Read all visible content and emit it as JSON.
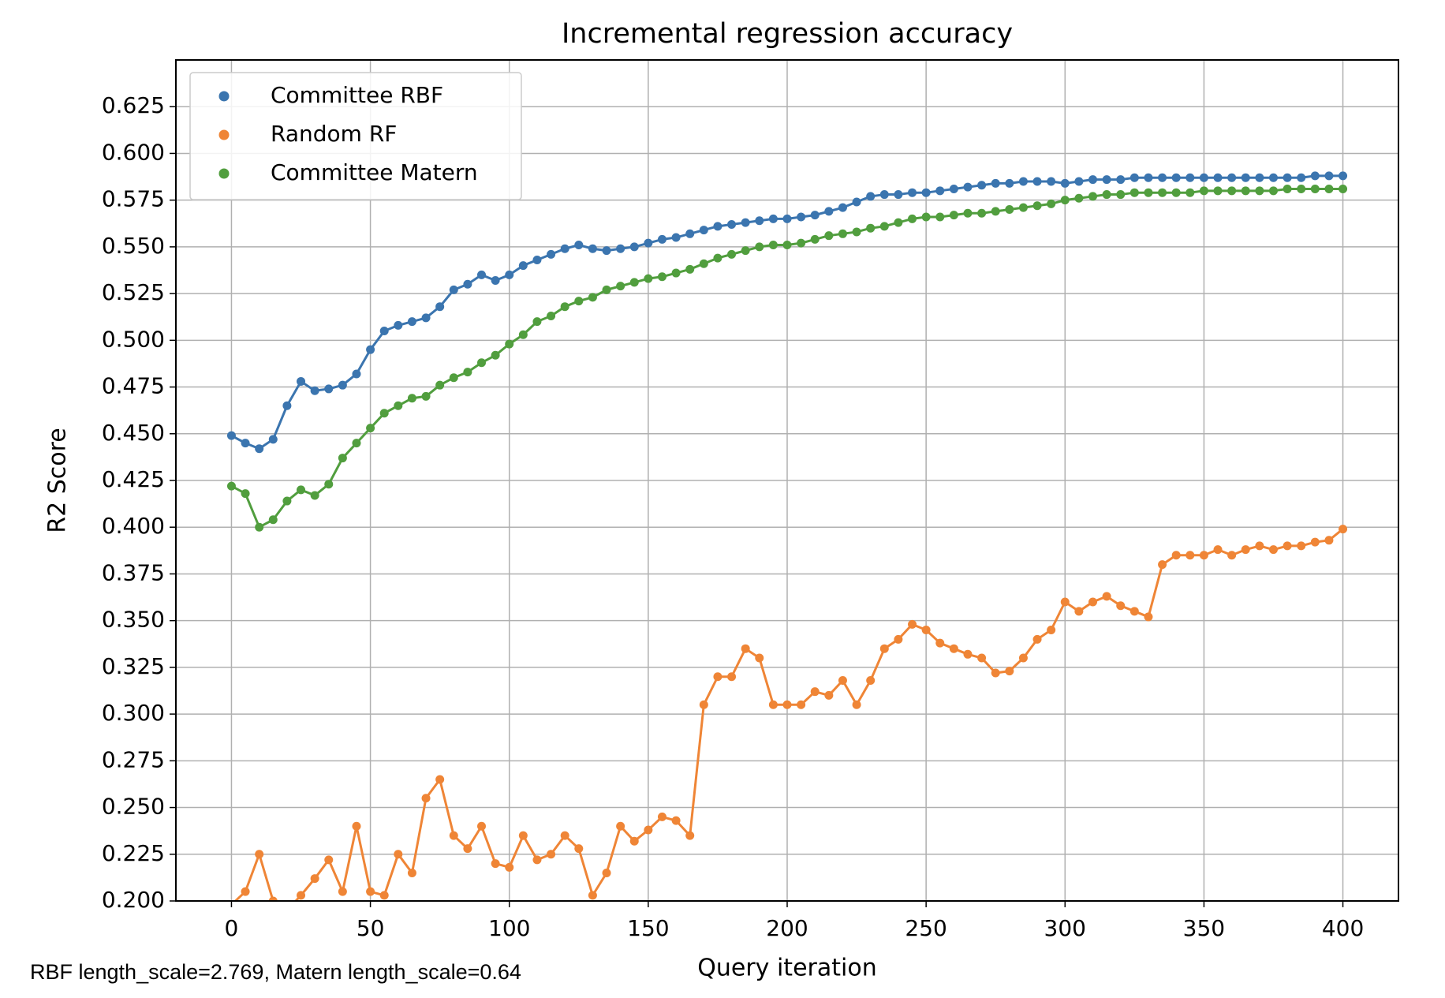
{
  "chart_data": {
    "type": "line",
    "title": "Incremental regression accuracy",
    "xlabel": "Query iteration",
    "ylabel": "R2 Score",
    "annotation": "RBF length_scale=2.769, Matern length_scale=0.64",
    "x": [
      0,
      5,
      10,
      15,
      20,
      25,
      30,
      35,
      40,
      45,
      50,
      55,
      60,
      65,
      70,
      75,
      80,
      85,
      90,
      95,
      100,
      105,
      110,
      115,
      120,
      125,
      130,
      135,
      140,
      145,
      150,
      155,
      160,
      165,
      170,
      175,
      180,
      185,
      190,
      195,
      200,
      205,
      210,
      215,
      220,
      225,
      230,
      235,
      240,
      245,
      250,
      255,
      260,
      265,
      270,
      275,
      280,
      285,
      290,
      295,
      300,
      305,
      310,
      315,
      320,
      325,
      330,
      335,
      340,
      345,
      350,
      355,
      360,
      365,
      370,
      375,
      380,
      385,
      390,
      395,
      400
    ],
    "series": [
      {
        "name": "Committee RBF",
        "color": "#3b75af",
        "values": [
          0.449,
          0.445,
          0.442,
          0.447,
          0.465,
          0.478,
          0.473,
          0.474,
          0.476,
          0.482,
          0.495,
          0.505,
          0.508,
          0.51,
          0.512,
          0.518,
          0.527,
          0.53,
          0.535,
          0.532,
          0.535,
          0.54,
          0.543,
          0.546,
          0.549,
          0.551,
          0.549,
          0.548,
          0.549,
          0.55,
          0.552,
          0.554,
          0.555,
          0.557,
          0.559,
          0.561,
          0.562,
          0.563,
          0.564,
          0.565,
          0.565,
          0.566,
          0.567,
          0.569,
          0.571,
          0.574,
          0.577,
          0.578,
          0.578,
          0.579,
          0.579,
          0.58,
          0.581,
          0.582,
          0.583,
          0.584,
          0.584,
          0.585,
          0.585,
          0.585,
          0.584,
          0.585,
          0.586,
          0.586,
          0.586,
          0.587,
          0.587,
          0.587,
          0.587,
          0.587,
          0.587,
          0.587,
          0.587,
          0.587,
          0.587,
          0.587,
          0.587,
          0.587,
          0.588,
          0.588,
          0.588
        ]
      },
      {
        "name": "Random RF",
        "color": "#ef8536",
        "values": [
          0.198,
          0.205,
          0.225,
          0.2,
          0.195,
          0.203,
          0.212,
          0.222,
          0.205,
          0.24,
          0.205,
          0.203,
          0.225,
          0.215,
          0.255,
          0.265,
          0.235,
          0.228,
          0.24,
          0.22,
          0.218,
          0.235,
          0.222,
          0.225,
          0.235,
          0.228,
          0.203,
          0.215,
          0.24,
          0.232,
          0.238,
          0.245,
          0.243,
          0.235,
          0.305,
          0.32,
          0.32,
          0.335,
          0.33,
          0.305,
          0.305,
          0.305,
          0.312,
          0.31,
          0.318,
          0.305,
          0.318,
          0.335,
          0.34,
          0.348,
          0.345,
          0.338,
          0.335,
          0.332,
          0.33,
          0.322,
          0.323,
          0.33,
          0.34,
          0.345,
          0.36,
          0.355,
          0.36,
          0.363,
          0.358,
          0.355,
          0.352,
          0.38,
          0.385,
          0.385,
          0.385,
          0.388,
          0.385,
          0.388,
          0.39,
          0.388,
          0.39,
          0.39,
          0.392,
          0.393,
          0.399
        ]
      },
      {
        "name": "Committee Matern",
        "color": "#519e3e",
        "values": [
          0.422,
          0.418,
          0.4,
          0.404,
          0.414,
          0.42,
          0.417,
          0.423,
          0.437,
          0.445,
          0.453,
          0.461,
          0.465,
          0.469,
          0.47,
          0.476,
          0.48,
          0.483,
          0.488,
          0.492,
          0.498,
          0.503,
          0.51,
          0.513,
          0.518,
          0.521,
          0.523,
          0.527,
          0.529,
          0.531,
          0.533,
          0.534,
          0.536,
          0.538,
          0.541,
          0.544,
          0.546,
          0.548,
          0.55,
          0.551,
          0.551,
          0.552,
          0.554,
          0.556,
          0.557,
          0.558,
          0.56,
          0.561,
          0.563,
          0.565,
          0.566,
          0.566,
          0.567,
          0.568,
          0.568,
          0.569,
          0.57,
          0.571,
          0.572,
          0.573,
          0.575,
          0.576,
          0.577,
          0.578,
          0.578,
          0.579,
          0.579,
          0.579,
          0.579,
          0.579,
          0.58,
          0.58,
          0.58,
          0.58,
          0.58,
          0.58,
          0.581,
          0.581,
          0.581,
          0.581,
          0.581
        ]
      }
    ],
    "xlim": [
      -20,
      420
    ],
    "ylim": [
      0.2,
      0.65
    ],
    "xticks": [
      0,
      50,
      100,
      150,
      200,
      250,
      300,
      350,
      400
    ],
    "yticks": [
      {
        "value": 0.2,
        "label": "0.200"
      },
      {
        "value": 0.225,
        "label": "0.225"
      },
      {
        "value": 0.25,
        "label": "0.250"
      },
      {
        "value": 0.275,
        "label": "0.275"
      },
      {
        "value": 0.3,
        "label": "0.300"
      },
      {
        "value": 0.325,
        "label": "0.325"
      },
      {
        "value": 0.35,
        "label": "0.350"
      },
      {
        "value": 0.375,
        "label": "0.375"
      },
      {
        "value": 0.4,
        "label": "0.400"
      },
      {
        "value": 0.425,
        "label": "0.425"
      },
      {
        "value": 0.45,
        "label": "0.450"
      },
      {
        "value": 0.475,
        "label": "0.475"
      },
      {
        "value": 0.5,
        "label": "0.500"
      },
      {
        "value": 0.525,
        "label": "0.525"
      },
      {
        "value": 0.55,
        "label": "0.550"
      },
      {
        "value": 0.575,
        "label": "0.575"
      },
      {
        "value": 0.6,
        "label": "0.600"
      },
      {
        "value": 0.625,
        "label": "0.625"
      }
    ],
    "grid": true,
    "markers": true,
    "legend": "upper left"
  }
}
